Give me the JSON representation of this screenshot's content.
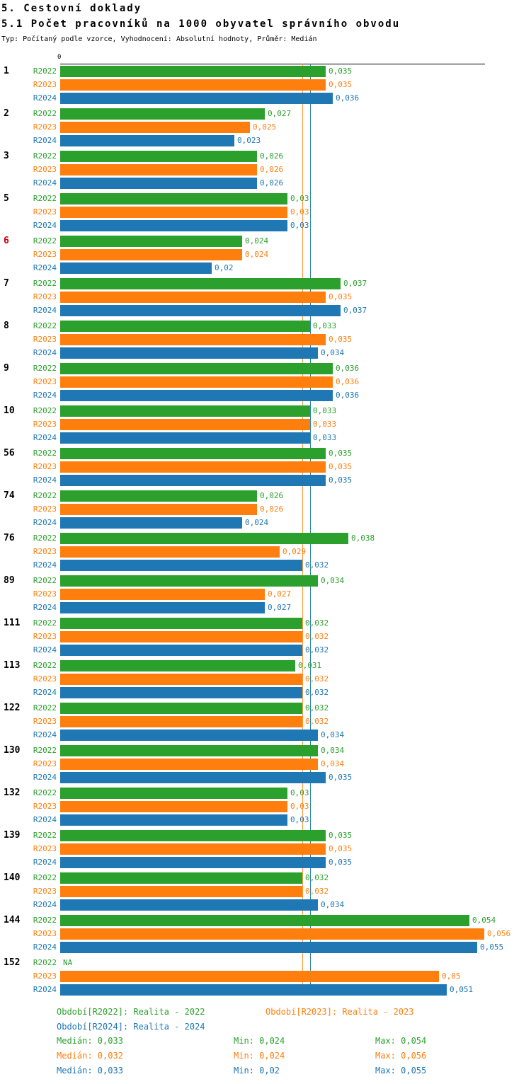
{
  "header": {
    "title": "5. Cestovní doklady",
    "subtitle": "5.1 Počet pracovníků na 1000 obyvatel správního obvodu",
    "meta": "Typ: Počítaný podle vzorce, Vyhodnocení: Absolutní hodnoty, Průměr: Medián"
  },
  "chart_data": {
    "type": "bar",
    "orientation": "horizontal",
    "title": "5.1 Počet pracovníků na 1000 obyvatel správního obvodu",
    "xlim": [
      0,
      0.056
    ],
    "axis": {
      "origin_label": "0"
    },
    "series_names": [
      "R2022",
      "R2023",
      "R2024"
    ],
    "series_colors": [
      "#2ca02c",
      "#ff7f0e",
      "#1f77b4"
    ],
    "highlight_color": "#cc0000",
    "median_lines": [
      {
        "series": "R2023",
        "value": 0.032,
        "color": "#ff7f0e"
      },
      {
        "series": "R2022",
        "value": 0.033,
        "color": "#2ca02c"
      },
      {
        "series": "R2024",
        "value": 0.033,
        "color": "#1f77b4"
      }
    ],
    "groups": [
      {
        "category": "1",
        "highlight": false,
        "values": [
          0.035,
          0.035,
          0.036
        ],
        "labels": [
          "0,035",
          "0,035",
          "0,036"
        ]
      },
      {
        "category": "2",
        "highlight": false,
        "values": [
          0.027,
          0.025,
          0.023
        ],
        "labels": [
          "0,027",
          "0,025",
          "0,023"
        ]
      },
      {
        "category": "3",
        "highlight": false,
        "values": [
          0.026,
          0.026,
          0.026
        ],
        "labels": [
          "0,026",
          "0,026",
          "0,026"
        ]
      },
      {
        "category": "5",
        "highlight": false,
        "values": [
          0.03,
          0.03,
          0.03
        ],
        "labels": [
          "0,03",
          "0,03",
          "0,03"
        ]
      },
      {
        "category": "6",
        "highlight": true,
        "values": [
          0.024,
          0.024,
          0.02
        ],
        "labels": [
          "0,024",
          "0,024",
          "0,02"
        ]
      },
      {
        "category": "7",
        "highlight": false,
        "values": [
          0.037,
          0.035,
          0.037
        ],
        "labels": [
          "0,037",
          "0,035",
          "0,037"
        ]
      },
      {
        "category": "8",
        "highlight": false,
        "values": [
          0.033,
          0.035,
          0.034
        ],
        "labels": [
          "0,033",
          "0,035",
          "0,034"
        ]
      },
      {
        "category": "9",
        "highlight": false,
        "values": [
          0.036,
          0.036,
          0.036
        ],
        "labels": [
          "0,036",
          "0,036",
          "0,036"
        ]
      },
      {
        "category": "10",
        "highlight": false,
        "values": [
          0.033,
          0.033,
          0.033
        ],
        "labels": [
          "0,033",
          "0,033",
          "0,033"
        ]
      },
      {
        "category": "56",
        "highlight": false,
        "values": [
          0.035,
          0.035,
          0.035
        ],
        "labels": [
          "0,035",
          "0,035",
          "0,035"
        ]
      },
      {
        "category": "74",
        "highlight": false,
        "values": [
          0.026,
          0.026,
          0.024
        ],
        "labels": [
          "0,026",
          "0,026",
          "0,024"
        ]
      },
      {
        "category": "76",
        "highlight": false,
        "values": [
          0.038,
          0.029,
          0.032
        ],
        "labels": [
          "0,038",
          "0,029",
          "0,032"
        ]
      },
      {
        "category": "89",
        "highlight": false,
        "values": [
          0.034,
          0.027,
          0.027
        ],
        "labels": [
          "0,034",
          "0,027",
          "0,027"
        ]
      },
      {
        "category": "111",
        "highlight": false,
        "values": [
          0.032,
          0.032,
          0.032
        ],
        "labels": [
          "0,032",
          "0,032",
          "0,032"
        ]
      },
      {
        "category": "113",
        "highlight": false,
        "values": [
          0.031,
          0.032,
          0.032
        ],
        "labels": [
          "0,031",
          "0,032",
          "0,032"
        ]
      },
      {
        "category": "122",
        "highlight": false,
        "values": [
          0.032,
          0.032,
          0.034
        ],
        "labels": [
          "0,032",
          "0,032",
          "0,034"
        ]
      },
      {
        "category": "130",
        "highlight": false,
        "values": [
          0.034,
          0.034,
          0.035
        ],
        "labels": [
          "0,034",
          "0,034",
          "0,035"
        ]
      },
      {
        "category": "132",
        "highlight": false,
        "values": [
          0.03,
          0.03,
          0.03
        ],
        "labels": [
          "0,03",
          "0,03",
          "0,03"
        ]
      },
      {
        "category": "139",
        "highlight": false,
        "values": [
          0.035,
          0.035,
          0.035
        ],
        "labels": [
          "0,035",
          "0,035",
          "0,035"
        ]
      },
      {
        "category": "140",
        "highlight": false,
        "values": [
          0.032,
          0.032,
          0.034
        ],
        "labels": [
          "0,032",
          "0,032",
          "0,034"
        ]
      },
      {
        "category": "144",
        "highlight": false,
        "values": [
          0.054,
          0.056,
          0.055
        ],
        "labels": [
          "0,054",
          "0,056",
          "0,055"
        ]
      },
      {
        "category": "152",
        "highlight": false,
        "values": [
          null,
          0.05,
          0.051
        ],
        "labels": [
          "NA",
          "0,05",
          "0,051"
        ]
      }
    ],
    "legend": [
      {
        "label": "Období[R2022]: Realita - 2022",
        "color": "#2ca02c"
      },
      {
        "label": "Období[R2023]: Realita - 2023",
        "color": "#ff7f0e"
      },
      {
        "label": "Období[R2024]: Realita - 2024",
        "color": "#1f77b4"
      }
    ],
    "stats": [
      {
        "color": "#2ca02c",
        "median_label": "Medián: 0,033",
        "min_label": "Min: 0,024",
        "max_label": "Max: 0,054"
      },
      {
        "color": "#ff7f0e",
        "median_label": "Medián: 0,032",
        "min_label": "Min: 0,024",
        "max_label": "Max: 0,056"
      },
      {
        "color": "#1f77b4",
        "median_label": "Medián: 0,033",
        "min_label": "Min: 0,02",
        "max_label": "Max: 0,055"
      }
    ]
  }
}
